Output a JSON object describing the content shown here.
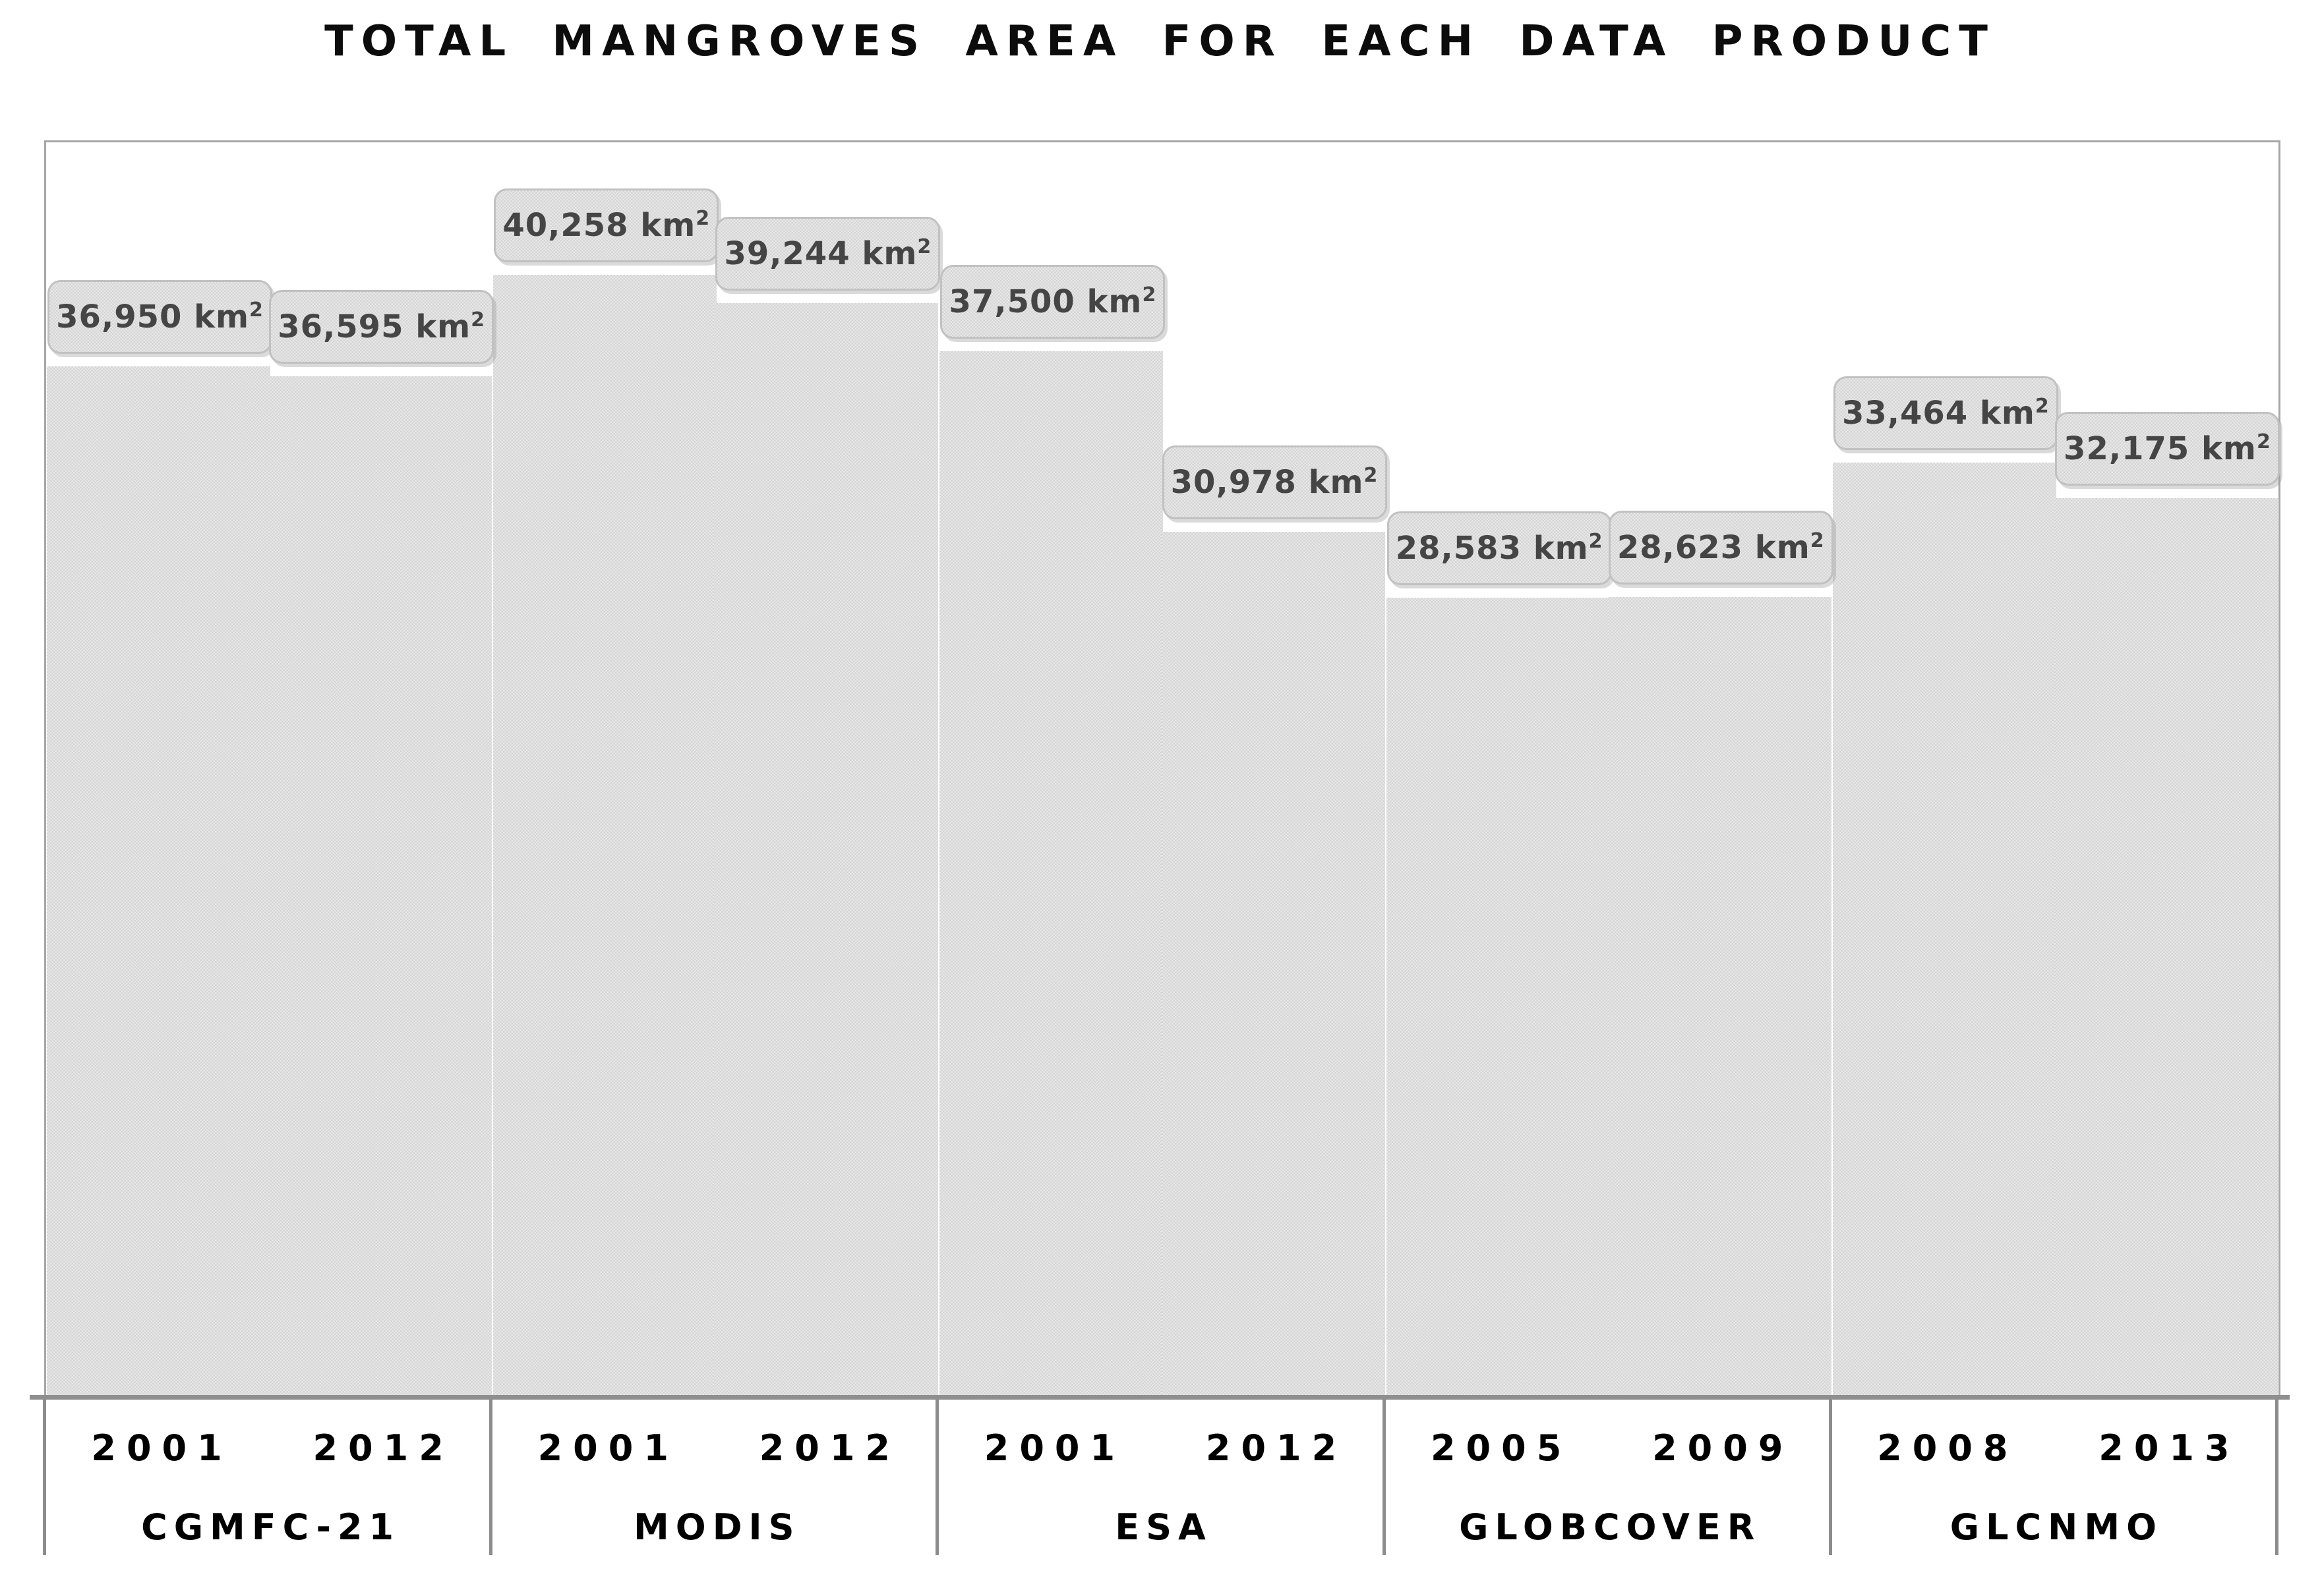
{
  "title": "TOTAL MANGROVES AREA FOR EACH DATA PRODUCT",
  "unit": {
    "base": "km",
    "sup": "2"
  },
  "chart_data": {
    "type": "bar",
    "title": "TOTAL MANGROVES AREA FOR EACH DATA PRODUCT",
    "xlabel": "",
    "ylabel": "",
    "value_unit": "km²",
    "ylim": [
      0,
      45360
    ],
    "grid": false,
    "y_axis_visible": false,
    "legend_position": "none",
    "categories": [
      "CGMFC-21",
      "MODIS",
      "ESA",
      "GLOBCOVER",
      "GLCNMO"
    ],
    "groups": [
      {
        "product": "CGMFC-21",
        "color": "#1e5318",
        "bars": [
          {
            "year": "2001",
            "value": 36950,
            "label": "36,950"
          },
          {
            "year": "2012",
            "value": 36595,
            "label": "36,595"
          }
        ]
      },
      {
        "product": "MODIS",
        "color": "#02195f",
        "bars": [
          {
            "year": "2001",
            "value": 40258,
            "label": "40,258"
          },
          {
            "year": "2012",
            "value": 39244,
            "label": "39,244"
          }
        ]
      },
      {
        "product": "ESA",
        "color": "#02195f",
        "bars": [
          {
            "year": "2001",
            "value": 37500,
            "label": "37,500"
          },
          {
            "year": "2012",
            "value": 30978,
            "label": "30,978"
          }
        ]
      },
      {
        "product": "GLOBCOVER",
        "color": "#02195f",
        "bars": [
          {
            "year": "2005",
            "value": 28583,
            "label": "28,583"
          },
          {
            "year": "2009",
            "value": 28623,
            "label": "28,623"
          }
        ]
      },
      {
        "product": "GLCNMO",
        "color": "#02195f",
        "bars": [
          {
            "year": "2008",
            "value": 33464,
            "label": "33,464"
          },
          {
            "year": "2013",
            "value": 32175,
            "label": "32,175"
          }
        ]
      }
    ]
  },
  "colors": {
    "bar_green": "#1e5318",
    "bar_navy": "#02195f",
    "bar_glow": "#dcdcdc",
    "label_box_fill": "#e7e7e7",
    "label_box_border": "#c1c1c1",
    "label_text": "#454545",
    "plot_border": "#a6a6a6",
    "axis_line": "#8f8f8f",
    "divider": "#8c8c8c",
    "title_text": "#0c0c0c",
    "axis_label_text": "#000000",
    "background": "#ffffff"
  }
}
